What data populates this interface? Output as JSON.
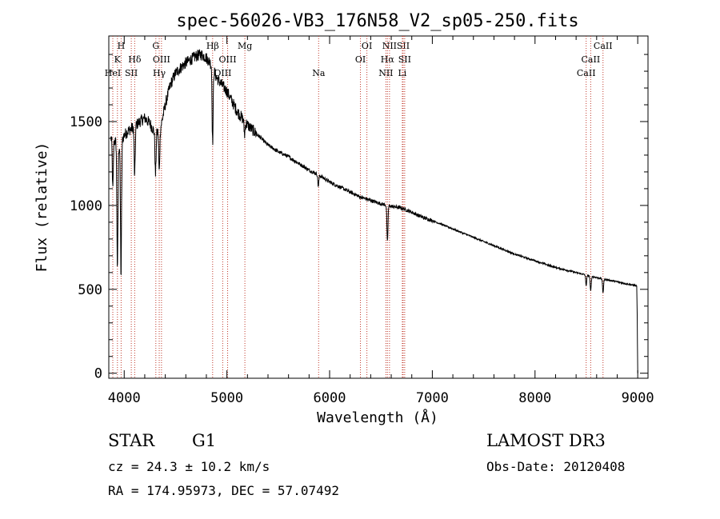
{
  "chart_data": {
    "type": "line",
    "title": "spec-56026-VB3_176N58_V2_sp05-250.fits",
    "xlabel": "Wavelength (Å)",
    "ylabel": "Flux (relative)",
    "xlim": [
      3850,
      9100
    ],
    "ylim": [
      -30,
      2010
    ],
    "xticks": [
      "4000",
      "5000",
      "6000",
      "7000",
      "8000",
      "9000"
    ],
    "yticks": [
      "0",
      "500",
      "1000",
      "1500"
    ],
    "continuum": [
      [
        3870,
        1400
      ],
      [
        3900,
        1390
      ],
      [
        3950,
        1350
      ],
      [
        4000,
        1420
      ],
      [
        4050,
        1450
      ],
      [
        4100,
        1470
      ],
      [
        4150,
        1500
      ],
      [
        4200,
        1520
      ],
      [
        4250,
        1490
      ],
      [
        4300,
        1430
      ],
      [
        4350,
        1450
      ],
      [
        4400,
        1600
      ],
      [
        4450,
        1720
      ],
      [
        4500,
        1790
      ],
      [
        4550,
        1820
      ],
      [
        4600,
        1850
      ],
      [
        4650,
        1870
      ],
      [
        4700,
        1890
      ],
      [
        4750,
        1900
      ],
      [
        4800,
        1880
      ],
      [
        4850,
        1840
      ],
      [
        4900,
        1760
      ],
      [
        4950,
        1720
      ],
      [
        5000,
        1680
      ],
      [
        5050,
        1620
      ],
      [
        5100,
        1560
      ],
      [
        5150,
        1520
      ],
      [
        5200,
        1480
      ],
      [
        5300,
        1420
      ],
      [
        5400,
        1360
      ],
      [
        5500,
        1320
      ],
      [
        5600,
        1290
      ],
      [
        5700,
        1250
      ],
      [
        5800,
        1210
      ],
      [
        5900,
        1180
      ],
      [
        6000,
        1140
      ],
      [
        6100,
        1110
      ],
      [
        6200,
        1080
      ],
      [
        6300,
        1050
      ],
      [
        6400,
        1030
      ],
      [
        6500,
        1010
      ],
      [
        6600,
        995
      ],
      [
        6700,
        985
      ],
      [
        6800,
        960
      ],
      [
        6900,
        930
      ],
      [
        7000,
        910
      ],
      [
        7200,
        860
      ],
      [
        7400,
        810
      ],
      [
        7600,
        760
      ],
      [
        7800,
        710
      ],
      [
        8000,
        670
      ],
      [
        8200,
        630
      ],
      [
        8400,
        600
      ],
      [
        8600,
        570
      ],
      [
        8800,
        545
      ],
      [
        8950,
        525
      ],
      [
        8990,
        520
      ],
      [
        8995,
        350
      ],
      [
        9000,
        0
      ]
    ],
    "absorption_dips": [
      [
        3889,
        300
      ],
      [
        3934,
        750
      ],
      [
        3969,
        800
      ],
      [
        4102,
        300
      ],
      [
        4305,
        250
      ],
      [
        4341,
        250
      ],
      [
        4861,
        450
      ],
      [
        5172,
        80
      ],
      [
        5890,
        70
      ],
      [
        6563,
        220
      ],
      [
        8498,
        60
      ],
      [
        8542,
        90
      ],
      [
        8662,
        80
      ]
    ],
    "line_markers": [
      {
        "label": "H",
        "wavelength": 3970,
        "row": 0
      },
      {
        "label": "K",
        "wavelength": 3934,
        "row": 1
      },
      {
        "label": "HeI",
        "wavelength": 3889,
        "row": 2
      },
      {
        "label": "SII",
        "wavelength": 4069,
        "row": 2
      },
      {
        "label": "Hδ",
        "wavelength": 4102,
        "row": 1
      },
      {
        "label": "G",
        "wavelength": 4308,
        "row": 0
      },
      {
        "label": "OIII",
        "wavelength": 4363,
        "row": 1
      },
      {
        "label": "Hγ",
        "wavelength": 4341,
        "row": 2
      },
      {
        "label": "Hβ",
        "wavelength": 4861,
        "row": 0
      },
      {
        "label": "OIII",
        "wavelength": 5007,
        "row": 1
      },
      {
        "label": "OIII",
        "wavelength": 4959,
        "row": 2
      },
      {
        "label": "Mg",
        "wavelength": 5175,
        "row": 0
      },
      {
        "label": "Na",
        "wavelength": 5893,
        "row": 2
      },
      {
        "label": "OI",
        "wavelength": 6363,
        "row": 0
      },
      {
        "label": "OI",
        "wavelength": 6300,
        "row": 1
      },
      {
        "label": "NII",
        "wavelength": 6583,
        "row": 0
      },
      {
        "label": "SII",
        "wavelength": 6716,
        "row": 0
      },
      {
        "label": "Hα",
        "wavelength": 6563,
        "row": 1
      },
      {
        "label": "SII",
        "wavelength": 6731,
        "row": 1
      },
      {
        "label": "NII",
        "wavelength": 6548,
        "row": 2
      },
      {
        "label": "Li",
        "wavelength": 6708,
        "row": 2
      },
      {
        "label": "CaII",
        "wavelength": 8662,
        "row": 0
      },
      {
        "label": "CaII",
        "wavelength": 8542,
        "row": 1
      },
      {
        "label": "CaII",
        "wavelength": 8498,
        "row": 2
      }
    ]
  },
  "info": {
    "class_label": "STAR",
    "subclass": "G1",
    "cz": "cz = 24.3 ± 10.2 km/s",
    "coords": "RA = 174.95973, DEC =  57.07492",
    "survey": "LAMOST DR3",
    "obs_date": "Obs-Date: 20120408"
  }
}
